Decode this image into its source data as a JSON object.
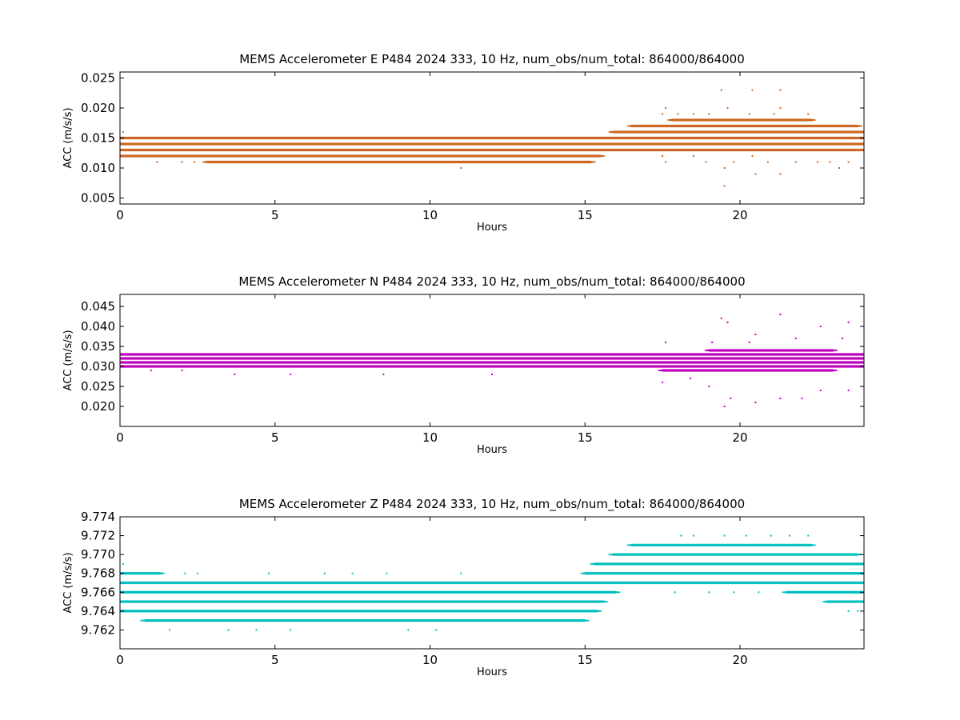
{
  "chart_data": [
    {
      "type": "scatter",
      "title": "MEMS Accelerometer E P484 2024 333, 10 Hz, num_obs/num_total: 864000/864000",
      "xlabel": "Hours",
      "ylabel": "ACC (m/s/s)",
      "xlim": [
        0,
        24
      ],
      "ylim": [
        0.004,
        0.026
      ],
      "xticks": [
        0,
        5,
        10,
        15,
        20
      ],
      "yticks": [
        0.005,
        0.01,
        0.015,
        0.02,
        0.025
      ],
      "ytick_decimals": 3,
      "color": "#cc6622",
      "grid": false,
      "series": [
        {
          "values": [
            {
              "y": 0.011,
              "x_start": 2.8,
              "x_end": 15.2
            },
            {
              "y": 0.012,
              "x_start": 0.0,
              "x_end": 15.5
            },
            {
              "y": 0.013,
              "x_start": 0.0,
              "x_end": 24.0
            },
            {
              "y": 0.014,
              "x_start": 0.0,
              "x_end": 24.0
            },
            {
              "y": 0.015,
              "x_start": 0.0,
              "x_end": 24.0
            },
            {
              "y": 0.016,
              "x_start": 15.9,
              "x_end": 24.0
            },
            {
              "y": 0.017,
              "x_start": 16.5,
              "x_end": 23.8
            },
            {
              "y": 0.018,
              "x_start": 17.8,
              "x_end": 22.3
            }
          ]
        },
        {
          "values": [
            {
              "x": 0.1,
              "y": 0.016
            },
            {
              "x": 1.2,
              "y": 0.011
            },
            {
              "x": 2.0,
              "y": 0.011
            },
            {
              "x": 2.4,
              "y": 0.011
            },
            {
              "x": 4.0,
              "y": 0.015
            },
            {
              "x": 11.0,
              "y": 0.01
            },
            {
              "x": 11.7,
              "y": 0.015
            },
            {
              "x": 17.5,
              "y": 0.019
            },
            {
              "x": 17.5,
              "y": 0.012
            },
            {
              "x": 17.6,
              "y": 0.02
            },
            {
              "x": 17.6,
              "y": 0.011
            },
            {
              "x": 18.0,
              "y": 0.019
            },
            {
              "x": 18.5,
              "y": 0.019
            },
            {
              "x": 18.5,
              "y": 0.012
            },
            {
              "x": 18.9,
              "y": 0.011
            },
            {
              "x": 19.0,
              "y": 0.019
            },
            {
              "x": 19.4,
              "y": 0.023
            },
            {
              "x": 19.5,
              "y": 0.01
            },
            {
              "x": 19.5,
              "y": 0.007
            },
            {
              "x": 19.6,
              "y": 0.02
            },
            {
              "x": 19.8,
              "y": 0.011
            },
            {
              "x": 20.3,
              "y": 0.019
            },
            {
              "x": 20.4,
              "y": 0.012
            },
            {
              "x": 20.4,
              "y": 0.023
            },
            {
              "x": 20.5,
              "y": 0.009
            },
            {
              "x": 20.9,
              "y": 0.011
            },
            {
              "x": 21.1,
              "y": 0.019
            },
            {
              "x": 21.3,
              "y": 0.02
            },
            {
              "x": 21.3,
              "y": 0.023
            },
            {
              "x": 21.3,
              "y": 0.009
            },
            {
              "x": 21.8,
              "y": 0.011
            },
            {
              "x": 22.2,
              "y": 0.019
            },
            {
              "x": 22.5,
              "y": 0.011
            },
            {
              "x": 22.9,
              "y": 0.011
            },
            {
              "x": 23.2,
              "y": 0.01
            },
            {
              "x": 23.5,
              "y": 0.011
            }
          ]
        }
      ]
    },
    {
      "type": "scatter",
      "title": "MEMS Accelerometer N P484 2024 333, 10 Hz, num_obs/num_total: 864000/864000",
      "xlabel": "Hours",
      "ylabel": "ACC (m/s/s)",
      "xlim": [
        0,
        24
      ],
      "ylim": [
        0.015,
        0.048
      ],
      "xticks": [
        0,
        5,
        10,
        15,
        20
      ],
      "yticks": [
        0.02,
        0.025,
        0.03,
        0.035,
        0.04,
        0.045
      ],
      "ytick_decimals": 3,
      "color": "#bf00bf",
      "grid": false,
      "series": [
        {
          "values": [
            {
              "y": 0.03,
              "x_start": 0.0,
              "x_end": 24.0
            },
            {
              "y": 0.031,
              "x_start": 0.0,
              "x_end": 24.0
            },
            {
              "y": 0.032,
              "x_start": 0.0,
              "x_end": 24.0
            },
            {
              "y": 0.033,
              "x_start": 0.0,
              "x_end": 24.0
            },
            {
              "y": 0.029,
              "x_start": 17.5,
              "x_end": 23.0
            },
            {
              "y": 0.034,
              "x_start": 19.0,
              "x_end": 23.0
            }
          ]
        },
        {
          "values": [
            {
              "x": 1.0,
              "y": 0.029
            },
            {
              "x": 2.0,
              "y": 0.029
            },
            {
              "x": 3.7,
              "y": 0.028
            },
            {
              "x": 4.5,
              "y": 0.033
            },
            {
              "x": 5.5,
              "y": 0.028
            },
            {
              "x": 7.0,
              "y": 0.033
            },
            {
              "x": 8.5,
              "y": 0.028
            },
            {
              "x": 10.3,
              "y": 0.033
            },
            {
              "x": 12.0,
              "y": 0.028
            },
            {
              "x": 15.5,
              "y": 0.033
            },
            {
              "x": 17.5,
              "y": 0.026
            },
            {
              "x": 17.6,
              "y": 0.036
            },
            {
              "x": 18.4,
              "y": 0.027
            },
            {
              "x": 19.0,
              "y": 0.025
            },
            {
              "x": 19.1,
              "y": 0.036
            },
            {
              "x": 19.4,
              "y": 0.042
            },
            {
              "x": 19.5,
              "y": 0.02
            },
            {
              "x": 19.6,
              "y": 0.041
            },
            {
              "x": 19.7,
              "y": 0.022
            },
            {
              "x": 20.3,
              "y": 0.036
            },
            {
              "x": 20.5,
              "y": 0.021
            },
            {
              "x": 20.5,
              "y": 0.038
            },
            {
              "x": 21.3,
              "y": 0.043
            },
            {
              "x": 21.3,
              "y": 0.022
            },
            {
              "x": 21.8,
              "y": 0.037
            },
            {
              "x": 22.0,
              "y": 0.022
            },
            {
              "x": 22.6,
              "y": 0.04
            },
            {
              "x": 22.6,
              "y": 0.024
            },
            {
              "x": 23.3,
              "y": 0.037
            },
            {
              "x": 23.5,
              "y": 0.041
            },
            {
              "x": 23.5,
              "y": 0.024
            }
          ]
        }
      ]
    },
    {
      "type": "scatter",
      "title": "MEMS Accelerometer Z P484 2024 333, 10 Hz, num_obs/num_total: 864000/864000",
      "xlabel": "Hours",
      "ylabel": "ACC (m/s/s)",
      "xlim": [
        0,
        24
      ],
      "ylim": [
        9.76,
        9.774
      ],
      "xticks": [
        0,
        5,
        10,
        15,
        20
      ],
      "yticks": [
        9.762,
        9.764,
        9.766,
        9.768,
        9.77,
        9.772,
        9.774
      ],
      "ytick_decimals": 3,
      "color": "#00bfbf",
      "grid": false,
      "series": [
        {
          "values": [
            {
              "y": 9.763,
              "x_start": 0.8,
              "x_end": 15.0
            },
            {
              "y": 9.764,
              "x_start": 0.0,
              "x_end": 15.4
            },
            {
              "y": 9.765,
              "x_start": 0.0,
              "x_end": 15.6
            },
            {
              "y": 9.766,
              "x_start": 0.0,
              "x_end": 16.0
            },
            {
              "y": 9.767,
              "x_start": 0.0,
              "x_end": 24.0
            },
            {
              "y": 9.768,
              "x_start": 0.0,
              "x_end": 1.3
            },
            {
              "y": 9.768,
              "x_start": 15.0,
              "x_end": 24.0
            },
            {
              "y": 9.769,
              "x_start": 15.3,
              "x_end": 24.0
            },
            {
              "y": 9.77,
              "x_start": 15.9,
              "x_end": 23.8
            },
            {
              "y": 9.771,
              "x_start": 16.5,
              "x_end": 22.3
            },
            {
              "y": 9.766,
              "x_start": 21.5,
              "x_end": 24.0
            },
            {
              "y": 9.765,
              "x_start": 22.8,
              "x_end": 24.0
            }
          ]
        },
        {
          "values": [
            {
              "x": 0.1,
              "y": 9.769
            },
            {
              "x": 1.6,
              "y": 9.762
            },
            {
              "x": 2.1,
              "y": 9.768
            },
            {
              "x": 2.5,
              "y": 9.768
            },
            {
              "x": 3.5,
              "y": 9.762
            },
            {
              "x": 4.4,
              "y": 9.762
            },
            {
              "x": 4.8,
              "y": 9.768
            },
            {
              "x": 5.5,
              "y": 9.762
            },
            {
              "x": 6.6,
              "y": 9.768
            },
            {
              "x": 7.5,
              "y": 9.768
            },
            {
              "x": 8.6,
              "y": 9.768
            },
            {
              "x": 9.3,
              "y": 9.762
            },
            {
              "x": 10.2,
              "y": 9.762
            },
            {
              "x": 11.0,
              "y": 9.768
            },
            {
              "x": 18.1,
              "y": 9.772
            },
            {
              "x": 18.5,
              "y": 9.772
            },
            {
              "x": 19.5,
              "y": 9.772
            },
            {
              "x": 20.2,
              "y": 9.772
            },
            {
              "x": 21.0,
              "y": 9.772
            },
            {
              "x": 21.6,
              "y": 9.772
            },
            {
              "x": 22.2,
              "y": 9.772
            },
            {
              "x": 17.9,
              "y": 9.766
            },
            {
              "x": 19.0,
              "y": 9.766
            },
            {
              "x": 19.8,
              "y": 9.766
            },
            {
              "x": 20.6,
              "y": 9.766
            },
            {
              "x": 23.5,
              "y": 9.764
            },
            {
              "x": 23.8,
              "y": 9.764
            }
          ]
        }
      ]
    }
  ]
}
